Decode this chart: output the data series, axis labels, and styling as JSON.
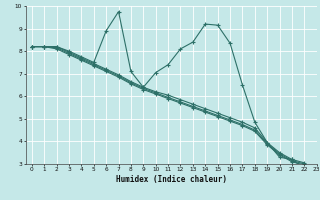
{
  "xlabel": "Humidex (Indice chaleur)",
  "bg_color": "#c5e8e8",
  "grid_color": "#ffffff",
  "line_color": "#2d7068",
  "xlim": [
    -0.5,
    23
  ],
  "ylim": [
    3,
    10
  ],
  "xticks": [
    0,
    1,
    2,
    3,
    4,
    5,
    6,
    7,
    8,
    9,
    10,
    11,
    12,
    13,
    14,
    15,
    16,
    17,
    18,
    19,
    20,
    21,
    22,
    23
  ],
  "yticks": [
    3,
    4,
    5,
    6,
    7,
    8,
    9,
    10
  ],
  "lines": [
    {
      "x": [
        0,
        1,
        2,
        3,
        4,
        5,
        6,
        7,
        8,
        9,
        10,
        11,
        12,
        13,
        14,
        15,
        16,
        17,
        18,
        19,
        20,
        21,
        22
      ],
      "y": [
        8.2,
        8.2,
        8.2,
        7.95,
        7.7,
        7.45,
        7.2,
        6.95,
        6.65,
        6.4,
        6.2,
        6.05,
        5.85,
        5.65,
        5.45,
        5.25,
        5.05,
        4.85,
        4.6,
        3.95,
        3.5,
        3.2,
        3.05
      ]
    },
    {
      "x": [
        0,
        1,
        2,
        3,
        4,
        5,
        6,
        7,
        8,
        9,
        10,
        11,
        12,
        13,
        14,
        15,
        16,
        17,
        18,
        19,
        20,
        21,
        22
      ],
      "y": [
        8.2,
        8.2,
        8.15,
        7.9,
        7.65,
        7.4,
        7.15,
        6.9,
        6.6,
        6.35,
        6.15,
        5.95,
        5.75,
        5.55,
        5.35,
        5.15,
        4.95,
        4.75,
        4.5,
        3.9,
        3.45,
        3.15,
        3.0
      ]
    },
    {
      "x": [
        0,
        1,
        2,
        3,
        4,
        5,
        6,
        7,
        8,
        9,
        10,
        11,
        12,
        13,
        14,
        15,
        16,
        17,
        18,
        19,
        20,
        21,
        22
      ],
      "y": [
        8.2,
        8.2,
        8.1,
        7.85,
        7.6,
        7.35,
        7.1,
        6.85,
        6.55,
        6.3,
        6.1,
        5.9,
        5.7,
        5.5,
        5.3,
        5.1,
        4.9,
        4.7,
        4.45,
        3.85,
        3.4,
        3.1,
        2.95
      ]
    },
    {
      "x": [
        0,
        1,
        2,
        3,
        4,
        5,
        6,
        7,
        8,
        9,
        10,
        11,
        12,
        13,
        14,
        15,
        16,
        17,
        18,
        19,
        20,
        21,
        22
      ],
      "y": [
        8.2,
        8.2,
        8.2,
        8.0,
        7.75,
        7.5,
        8.9,
        9.75,
        7.1,
        6.4,
        7.05,
        7.4,
        8.1,
        8.4,
        9.2,
        9.15,
        8.35,
        6.5,
        4.85,
        3.95,
        3.3,
        3.2,
        2.8
      ]
    }
  ]
}
